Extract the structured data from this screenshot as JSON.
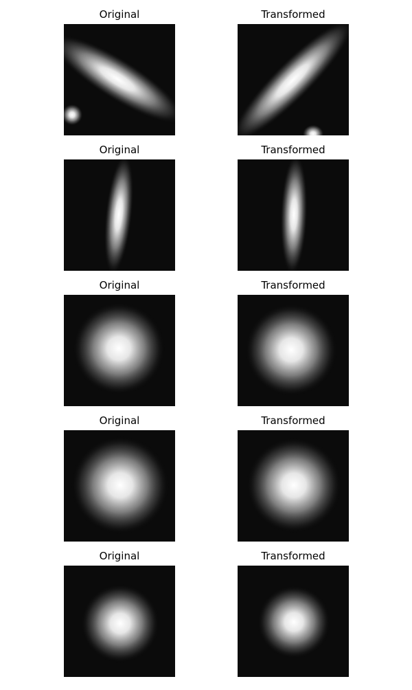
{
  "panels": [
    {
      "title": "Original"
    },
    {
      "title": "Transformed"
    },
    {
      "title": "Original"
    },
    {
      "title": "Transformed"
    },
    {
      "title": "Original"
    },
    {
      "title": "Transformed"
    },
    {
      "title": "Original"
    },
    {
      "title": "Transformed"
    },
    {
      "title": "Original"
    },
    {
      "title": "Transformed"
    }
  ]
}
